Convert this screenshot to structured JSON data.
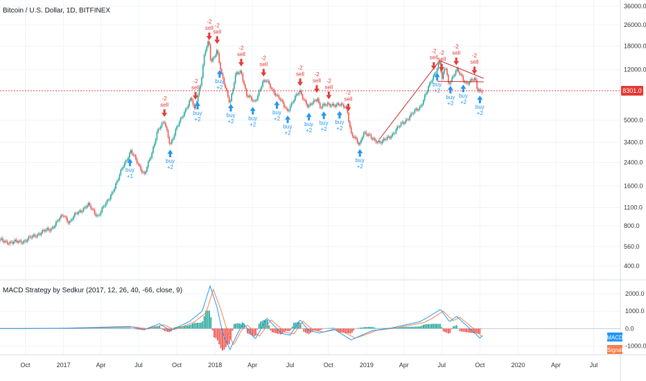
{
  "main_title": "Bitcoin / U.S. Dollar, 1D, BITFINEX",
  "indicator_title": "MACD Strategy by Sedkur (2017, 12, 26, 40, -66, close, 9)",
  "last_price_label": "8301.0",
  "last_price": 8301,
  "legend": {
    "macd": "MACD",
    "signal": "Signal"
  },
  "colors": {
    "up": "#26a69a",
    "down": "#ef5350",
    "buy": "#2196f3",
    "sell": "#e53935",
    "macd": "#2196f3",
    "signal": "#f57f4b",
    "price_line": "#e53935",
    "trend": "#c62828"
  },
  "chart_data": [
    {
      "type": "candlestick",
      "title": "Bitcoin / U.S. Dollar, 1D, BITFINEX",
      "y_scale": "log",
      "ylim": [
        330,
        40000
      ],
      "ytick_labels": [
        "36000.0",
        "26000.0",
        "18000.0",
        "12000.0",
        "8301.0",
        "5000.0",
        "3400.0",
        "2400.0",
        "1600.0",
        "1100.0",
        "800.0",
        "560.0",
        "400.0"
      ],
      "ytick_values": [
        36000,
        26000,
        18000,
        12000,
        8301,
        5000,
        3400,
        2400,
        1600,
        1100,
        800,
        560,
        400
      ],
      "xtick_labels": [
        "Oct",
        "2017",
        "Apr",
        "Jul",
        "Oct",
        "2018",
        "Apr",
        "Jul",
        "Oct",
        "2019",
        "Apr",
        "Jul",
        "Oct",
        "2020",
        "Apr",
        "Jul"
      ],
      "xtick_dates": [
        "2016-10-01",
        "2017-01-01",
        "2017-04-01",
        "2017-07-01",
        "2017-10-01",
        "2018-01-01",
        "2018-04-01",
        "2018-07-01",
        "2018-10-01",
        "2019-01-01",
        "2019-04-01",
        "2019-07-01",
        "2019-10-01",
        "2020-01-01",
        "2020-04-01",
        "2020-07-01"
      ],
      "xlim": [
        "2016-08-01",
        "2020-08-31"
      ],
      "price_series": [
        [
          "2016-08-01",
          620
        ],
        [
          "2016-09-01",
          600
        ],
        [
          "2016-10-01",
          620
        ],
        [
          "2016-11-01",
          700
        ],
        [
          "2016-12-01",
          760
        ],
        [
          "2017-01-01",
          970
        ],
        [
          "2017-01-15",
          850
        ],
        [
          "2017-02-01",
          990
        ],
        [
          "2017-03-01",
          1150
        ],
        [
          "2017-03-25",
          950
        ],
        [
          "2017-04-15",
          1200
        ],
        [
          "2017-05-10",
          1700
        ],
        [
          "2017-05-25",
          2300
        ],
        [
          "2017-06-12",
          2900
        ],
        [
          "2017-07-15",
          1950
        ],
        [
          "2017-08-01",
          2750
        ],
        [
          "2017-08-15",
          4200
        ],
        [
          "2017-09-01",
          4800
        ],
        [
          "2017-09-15",
          3300
        ],
        [
          "2017-10-01",
          4350
        ],
        [
          "2017-10-20",
          5900
        ],
        [
          "2017-11-05",
          7300
        ],
        [
          "2017-11-12",
          5900
        ],
        [
          "2017-11-28",
          9700
        ],
        [
          "2017-12-07",
          16000
        ],
        [
          "2017-12-17",
          19500
        ],
        [
          "2017-12-22",
          13500
        ],
        [
          "2018-01-06",
          17000
        ],
        [
          "2018-01-16",
          11000
        ],
        [
          "2018-02-06",
          6800
        ],
        [
          "2018-02-20",
          11000
        ],
        [
          "2018-03-05",
          11500
        ],
        [
          "2018-03-18",
          7800
        ],
        [
          "2018-04-06",
          6700
        ],
        [
          "2018-04-25",
          9600
        ],
        [
          "2018-05-05",
          9800
        ],
        [
          "2018-06-01",
          7500
        ],
        [
          "2018-06-24",
          5900
        ],
        [
          "2018-07-24",
          8300
        ],
        [
          "2018-08-14",
          6200
        ],
        [
          "2018-09-05",
          7400
        ],
        [
          "2018-09-10",
          6300
        ],
        [
          "2018-10-10",
          6600
        ],
        [
          "2018-11-14",
          6300
        ],
        [
          "2018-11-25",
          3900
        ],
        [
          "2018-12-15",
          3250
        ],
        [
          "2018-12-24",
          4100
        ],
        [
          "2019-01-15",
          3600
        ],
        [
          "2019-02-07",
          3400
        ],
        [
          "2019-03-01",
          3850
        ],
        [
          "2019-04-02",
          4900
        ],
        [
          "2019-05-10",
          6300
        ],
        [
          "2019-05-30",
          8700
        ],
        [
          "2019-06-26",
          13800
        ],
        [
          "2019-07-02",
          10000
        ],
        [
          "2019-07-10",
          12800
        ],
        [
          "2019-07-17",
          9400
        ],
        [
          "2019-08-06",
          11900
        ],
        [
          "2019-08-29",
          9500
        ],
        [
          "2019-09-20",
          10100
        ],
        [
          "2019-09-25",
          8500
        ],
        [
          "2019-10-08",
          8301
        ]
      ],
      "signals": [
        {
          "type": "buy",
          "date": "2017-06-10",
          "label": "buy",
          "value": "+1"
        },
        {
          "type": "sell",
          "date": "2017-09-01",
          "label": "sell",
          "value": "-2"
        },
        {
          "type": "buy",
          "date": "2017-09-15",
          "label": "buy",
          "value": "+2"
        },
        {
          "type": "sell",
          "date": "2017-11-15",
          "label": "sell",
          "value": "-2"
        },
        {
          "type": "buy",
          "date": "2017-11-20",
          "label": "buy",
          "value": "+2"
        },
        {
          "type": "sell",
          "date": "2017-12-18",
          "label": "sell",
          "value": "-2"
        },
        {
          "type": "sell",
          "date": "2018-01-06",
          "label": "sell",
          "value": "-2"
        },
        {
          "type": "buy",
          "date": "2018-01-12",
          "label": "buy",
          "value": "+2"
        },
        {
          "type": "buy",
          "date": "2018-02-08",
          "label": "buy",
          "value": "+2"
        },
        {
          "type": "sell",
          "date": "2018-03-05",
          "label": "sell",
          "value": "-2"
        },
        {
          "type": "buy",
          "date": "2018-04-02",
          "label": "buy",
          "value": "+2"
        },
        {
          "type": "sell",
          "date": "2018-04-28",
          "label": "sell",
          "value": "-2"
        },
        {
          "type": "buy",
          "date": "2018-05-30",
          "label": "buy",
          "value": "+2"
        },
        {
          "type": "buy",
          "date": "2018-06-25",
          "label": "buy",
          "value": "+2"
        },
        {
          "type": "sell",
          "date": "2018-07-25",
          "label": "sell",
          "value": "-2"
        },
        {
          "type": "buy",
          "date": "2018-08-15",
          "label": "buy",
          "value": "+2"
        },
        {
          "type": "sell",
          "date": "2018-09-03",
          "label": "sell",
          "value": "-2"
        },
        {
          "type": "buy",
          "date": "2018-09-20",
          "label": "buy",
          "value": "+2"
        },
        {
          "type": "sell",
          "date": "2018-10-02",
          "label": "sell",
          "value": "-2"
        },
        {
          "type": "buy",
          "date": "2018-10-28",
          "label": "buy",
          "value": "+2"
        },
        {
          "type": "sell",
          "date": "2018-11-18",
          "label": "sell",
          "value": "-2"
        },
        {
          "type": "buy",
          "date": "2018-12-16",
          "label": "buy",
          "value": "+2"
        },
        {
          "type": "sell",
          "date": "2019-06-12",
          "label": "sell",
          "value": "-2"
        },
        {
          "type": "buy",
          "date": "2019-06-20",
          "label": "buy",
          "value": "+2"
        },
        {
          "type": "sell",
          "date": "2019-07-01",
          "label": "sell",
          "value": "-2"
        },
        {
          "type": "buy",
          "date": "2019-07-22",
          "label": "buy",
          "value": "+2"
        },
        {
          "type": "sell",
          "date": "2019-08-05",
          "label": "sell",
          "value": "-2"
        },
        {
          "type": "buy",
          "date": "2019-08-22",
          "label": "buy",
          "value": "+2"
        },
        {
          "type": "sell",
          "date": "2019-09-18",
          "label": "sell",
          "value": "-2"
        },
        {
          "type": "buy",
          "date": "2019-10-01",
          "label": "buy",
          "value": "+2"
        }
      ],
      "trendlines": [
        [
          [
            "2019-02-01",
            3600
          ],
          [
            "2019-06-26",
            14000
          ]
        ],
        [
          [
            "2019-06-26",
            14000
          ],
          [
            "2019-10-10",
            10300
          ]
        ],
        [
          [
            "2019-06-20",
            9800
          ],
          [
            "2019-10-10",
            9700
          ]
        ]
      ]
    },
    {
      "type": "line",
      "title": "MACD Strategy by Sedkur (2017, 12, 26, 40, -66, close, 9)",
      "ylim": [
        -1500,
        2800
      ],
      "ytick_labels": [
        "2000.0",
        "1000.0",
        "0.0",
        "-1000.0"
      ],
      "ytick_values": [
        2000,
        1000,
        0,
        -1000
      ],
      "series": [
        {
          "name": "MACD",
          "values": [
            [
              "2016-08-01",
              0
            ],
            [
              "2017-01-01",
              20
            ],
            [
              "2017-06-10",
              120
            ],
            [
              "2017-07-15",
              -60
            ],
            [
              "2017-08-20",
              280
            ],
            [
              "2017-09-15",
              -120
            ],
            [
              "2017-11-01",
              420
            ],
            [
              "2017-12-01",
              1000
            ],
            [
              "2017-12-20",
              2450
            ],
            [
              "2018-01-05",
              1300
            ],
            [
              "2018-01-20",
              -300
            ],
            [
              "2018-02-06",
              -1200
            ],
            [
              "2018-02-25",
              -250
            ],
            [
              "2018-03-10",
              300
            ],
            [
              "2018-04-08",
              -600
            ],
            [
              "2018-05-06",
              600
            ],
            [
              "2018-06-10",
              -280
            ],
            [
              "2018-07-01",
              -380
            ],
            [
              "2018-07-25",
              500
            ],
            [
              "2018-08-15",
              -120
            ],
            [
              "2018-09-10",
              -250
            ],
            [
              "2018-10-15",
              -40
            ],
            [
              "2018-11-25",
              -650
            ],
            [
              "2018-12-20",
              -380
            ],
            [
              "2019-01-15",
              -120
            ],
            [
              "2019-03-01",
              30
            ],
            [
              "2019-05-10",
              400
            ],
            [
              "2019-06-01",
              700
            ],
            [
              "2019-06-28",
              1100
            ],
            [
              "2019-07-20",
              400
            ],
            [
              "2019-08-06",
              700
            ],
            [
              "2019-09-01",
              120
            ],
            [
              "2019-09-20",
              -300
            ],
            [
              "2019-10-01",
              -550
            ],
            [
              "2019-10-08",
              -380
            ]
          ]
        },
        {
          "name": "Signal",
          "values": [
            [
              "2016-08-01",
              0
            ],
            [
              "2017-01-01",
              15
            ],
            [
              "2017-06-20",
              90
            ],
            [
              "2017-07-25",
              -20
            ],
            [
              "2017-08-30",
              220
            ],
            [
              "2017-09-25",
              -60
            ],
            [
              "2017-11-10",
              350
            ],
            [
              "2017-12-10",
              900
            ],
            [
              "2017-12-28",
              2250
            ],
            [
              "2018-01-15",
              1100
            ],
            [
              "2018-02-01",
              -250
            ],
            [
              "2018-02-15",
              -950
            ],
            [
              "2018-03-05",
              -120
            ],
            [
              "2018-03-20",
              200
            ],
            [
              "2018-04-18",
              -450
            ],
            [
              "2018-05-16",
              500
            ],
            [
              "2018-06-20",
              -220
            ],
            [
              "2018-07-10",
              -300
            ],
            [
              "2018-08-01",
              420
            ],
            [
              "2018-08-25",
              -80
            ],
            [
              "2018-09-20",
              -200
            ],
            [
              "2018-10-25",
              -30
            ],
            [
              "2018-12-05",
              -550
            ],
            [
              "2018-12-30",
              -350
            ],
            [
              "2019-01-25",
              -100
            ],
            [
              "2019-03-10",
              25
            ],
            [
              "2019-05-20",
              350
            ],
            [
              "2019-06-10",
              620
            ],
            [
              "2019-07-05",
              1000
            ],
            [
              "2019-07-28",
              450
            ],
            [
              "2019-08-14",
              640
            ],
            [
              "2019-09-08",
              150
            ],
            [
              "2019-09-28",
              -250
            ],
            [
              "2019-10-05",
              -450
            ],
            [
              "2019-10-08",
              -420
            ]
          ]
        }
      ]
    }
  ]
}
